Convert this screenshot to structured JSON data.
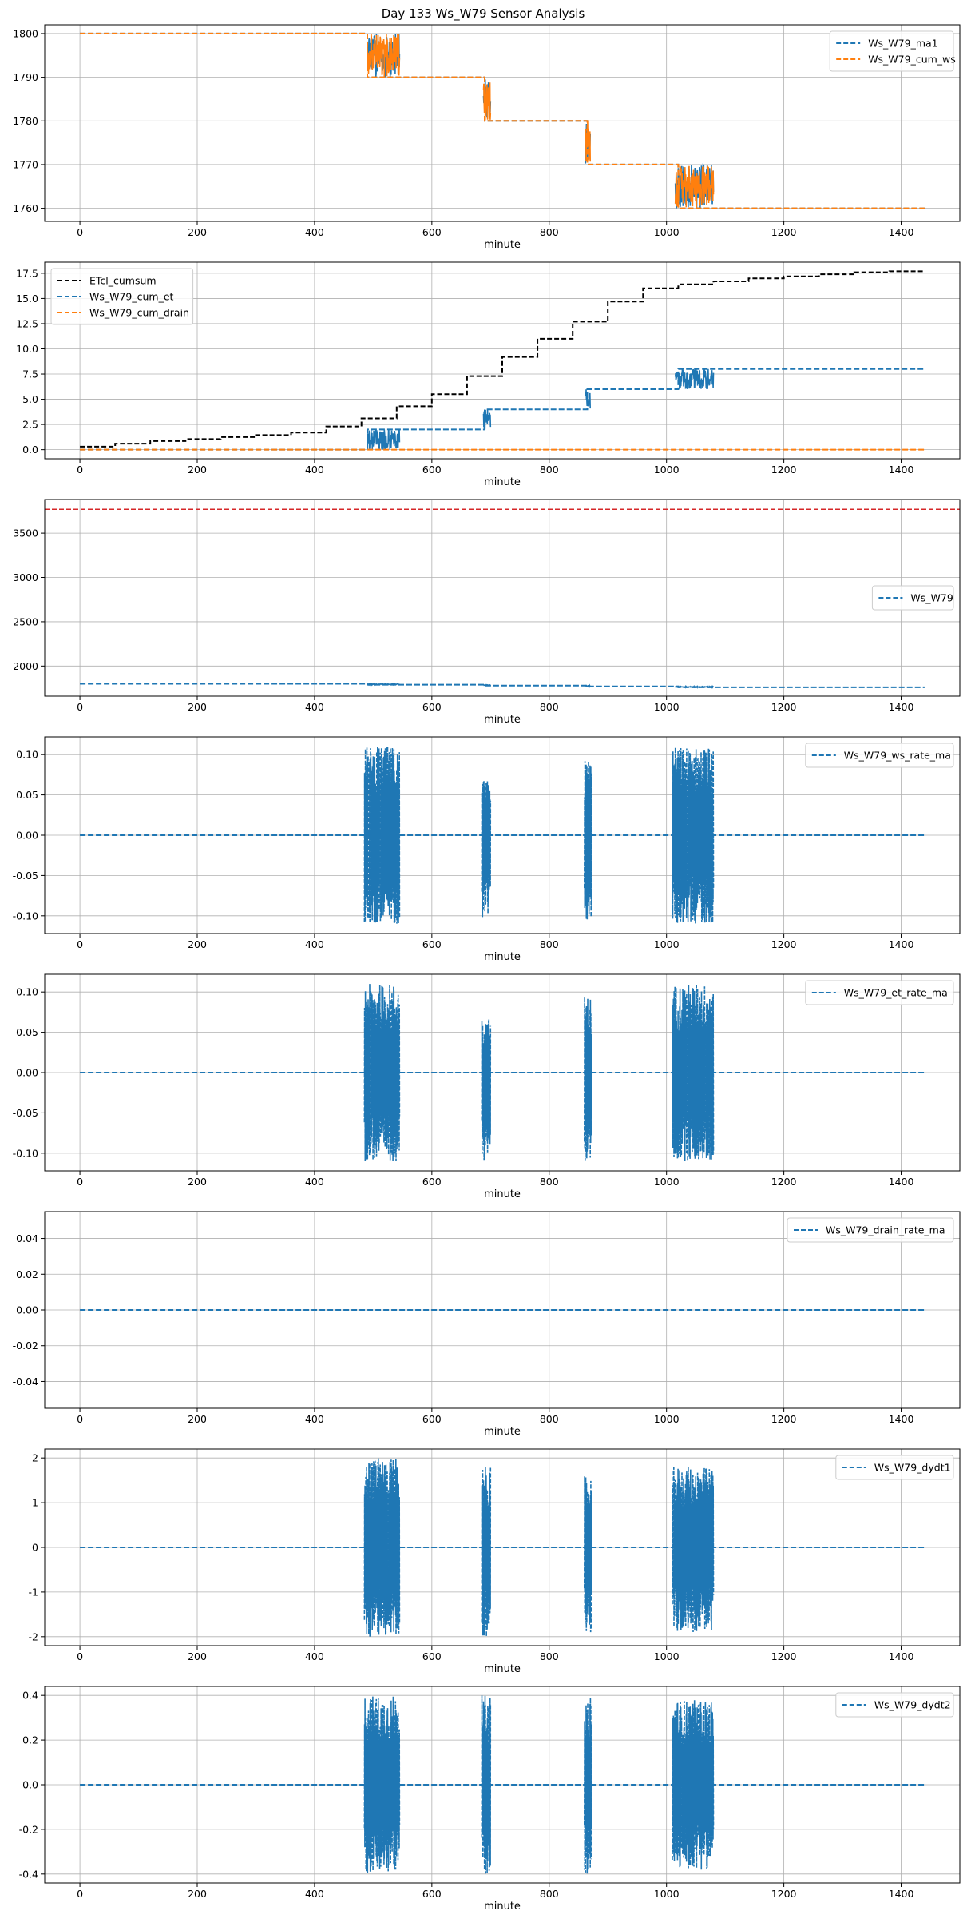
{
  "figure": {
    "suptitle": "Day 133 Ws_W79 Sensor Analysis"
  },
  "colors": {
    "blue": "#1f77b4",
    "orange": "#ff7f0e",
    "black": "#000000",
    "red": "#d62728",
    "grid": "#b0b0b0"
  },
  "chart_data": [
    {
      "type": "line",
      "xlabel": "minute",
      "xlim": [
        -60,
        1500
      ],
      "ylim": [
        1757,
        1802
      ],
      "xticks": [
        0,
        200,
        400,
        600,
        800,
        1000,
        1200,
        1400
      ],
      "xtick_labels": [
        "0",
        "200",
        "400",
        "600",
        "800",
        "1000",
        "1200",
        "1400"
      ],
      "yticks": [
        1760,
        1770,
        1780,
        1790,
        1800
      ],
      "ytick_labels": [
        "1760",
        "1770",
        "1780",
        "1790",
        "1800"
      ],
      "grid": true,
      "legend": "upper-right",
      "series": [
        {
          "name": "Ws_W79_ma1",
          "color": "#1f77b4",
          "style": "dashed",
          "x": [
            0,
            490,
            490,
            690,
            690,
            865,
            865,
            1020,
            1020,
            1440
          ],
          "y": [
            1800,
            1800,
            1790,
            1790,
            1780,
            1780,
            1770,
            1770,
            1760,
            1760
          ],
          "noise": [
            [
              490,
              545,
              1790,
              1800
            ],
            [
              688,
              700,
              1780,
              1790
            ],
            [
              862,
              870,
              1770,
              1780
            ],
            [
              1015,
              1080,
              1760,
              1770
            ]
          ]
        },
        {
          "name": "Ws_W79_cum_ws",
          "color": "#ff7f0e",
          "style": "dashed",
          "x": [
            0,
            490,
            490,
            690,
            690,
            865,
            865,
            1020,
            1020,
            1440
          ],
          "y": [
            1800,
            1800,
            1790,
            1790,
            1780,
            1780,
            1770,
            1770,
            1760,
            1760
          ],
          "noise": [
            [
              490,
              545,
              1790,
              1800
            ],
            [
              688,
              700,
              1780,
              1790
            ],
            [
              862,
              870,
              1770,
              1780
            ],
            [
              1015,
              1080,
              1760,
              1770
            ]
          ]
        }
      ]
    },
    {
      "type": "line",
      "xlabel": "minute",
      "xlim": [
        -60,
        1500
      ],
      "ylim": [
        -0.9,
        18.6
      ],
      "xticks": [
        0,
        200,
        400,
        600,
        800,
        1000,
        1200,
        1400
      ],
      "xtick_labels": [
        "0",
        "200",
        "400",
        "600",
        "800",
        "1000",
        "1200",
        "1400"
      ],
      "yticks": [
        0,
        2.5,
        5,
        7.5,
        10,
        12.5,
        15,
        17.5
      ],
      "ytick_labels": [
        "0.0",
        "2.5",
        "5.0",
        "7.5",
        "10.0",
        "12.5",
        "15.0",
        "17.5"
      ],
      "grid": true,
      "legend": "upper-left",
      "series": [
        {
          "name": "ETcl_cumsum",
          "color": "#000000",
          "style": "dashed",
          "x": [
            0,
            60,
            60,
            120,
            120,
            180,
            180,
            240,
            240,
            300,
            300,
            360,
            360,
            420,
            420,
            480,
            480,
            540,
            540,
            600,
            600,
            660,
            660,
            720,
            720,
            780,
            780,
            840,
            840,
            900,
            900,
            960,
            960,
            1020,
            1020,
            1080,
            1080,
            1140,
            1140,
            1200,
            1200,
            1260,
            1260,
            1320,
            1320,
            1380,
            1380,
            1440
          ],
          "y": [
            0.3,
            0.3,
            0.6,
            0.6,
            0.85,
            0.85,
            1.05,
            1.05,
            1.25,
            1.25,
            1.45,
            1.45,
            1.7,
            1.7,
            2.3,
            2.3,
            3.1,
            3.1,
            4.3,
            4.3,
            5.5,
            5.5,
            7.3,
            7.3,
            9.2,
            9.2,
            11.0,
            11.0,
            12.7,
            12.7,
            14.7,
            14.7,
            16.0,
            16.0,
            16.4,
            16.4,
            16.7,
            16.7,
            17.0,
            17.0,
            17.2,
            17.2,
            17.4,
            17.4,
            17.6,
            17.6,
            17.7,
            17.7
          ]
        },
        {
          "name": "Ws_W79_cum_et",
          "color": "#1f77b4",
          "style": "dashed",
          "x": [
            0,
            490,
            490,
            690,
            690,
            865,
            865,
            1020,
            1020,
            1440
          ],
          "y": [
            0,
            0,
            2,
            2,
            4,
            4,
            6,
            6,
            8,
            8
          ],
          "noise": [
            [
              490,
              545,
              0,
              2
            ],
            [
              688,
              700,
              2,
              4
            ],
            [
              862,
              870,
              4,
              6
            ],
            [
              1015,
              1080,
              6,
              8
            ]
          ]
        },
        {
          "name": "Ws_W79_cum_drain",
          "color": "#ff7f0e",
          "style": "dashed",
          "x": [
            0,
            1440
          ],
          "y": [
            0,
            0
          ]
        }
      ]
    },
    {
      "type": "line",
      "xlabel": "minute",
      "xlim": [
        -60,
        1500
      ],
      "ylim": [
        1660,
        3880
      ],
      "xticks": [
        0,
        200,
        400,
        600,
        800,
        1000,
        1200,
        1400
      ],
      "xtick_labels": [
        "0",
        "200",
        "400",
        "600",
        "800",
        "1000",
        "1200",
        "1400"
      ],
      "yticks": [
        2000,
        2500,
        3000,
        3500
      ],
      "ytick_labels": [
        "2000",
        "2500",
        "3000",
        "3500"
      ],
      "grid": true,
      "legend": "center-right",
      "hline": {
        "y": 3770,
        "color": "#d62728",
        "style": "dashed"
      },
      "series": [
        {
          "name": "Ws_W79",
          "color": "#1f77b4",
          "style": "dashed",
          "x": [
            0,
            490,
            490,
            690,
            690,
            865,
            865,
            1020,
            1020,
            1440
          ],
          "y": [
            1800,
            1800,
            1790,
            1790,
            1780,
            1780,
            1770,
            1770,
            1760,
            1760
          ],
          "noise": [
            [
              490,
              545,
              1790,
              1800
            ],
            [
              688,
              700,
              1780,
              1790
            ],
            [
              862,
              870,
              1770,
              1780
            ],
            [
              1015,
              1080,
              1760,
              1770
            ]
          ]
        }
      ]
    },
    {
      "type": "line",
      "xlabel": "minute",
      "xlim": [
        -60,
        1500
      ],
      "ylim": [
        -0.122,
        0.122
      ],
      "xticks": [
        0,
        200,
        400,
        600,
        800,
        1000,
        1200,
        1400
      ],
      "xtick_labels": [
        "0",
        "200",
        "400",
        "600",
        "800",
        "1000",
        "1200",
        "1400"
      ],
      "yticks": [
        -0.1,
        -0.05,
        0,
        0.05,
        0.1
      ],
      "ytick_labels": [
        "-0.10",
        "-0.05",
        "0.00",
        "0.05",
        "0.10"
      ],
      "grid": true,
      "legend": "upper-right",
      "series": [
        {
          "name": "Ws_W79_ws_rate_ma",
          "color": "#1f77b4",
          "style": "dashed",
          "x": [
            0,
            1440
          ],
          "y": [
            0,
            0
          ],
          "bursts": [
            [
              485,
              545,
              -0.11,
              0.11
            ],
            [
              685,
              700,
              -0.11,
              0.068
            ],
            [
              860,
              872,
              -0.11,
              0.095
            ],
            [
              1010,
              1080,
              -0.11,
              0.11
            ]
          ]
        }
      ]
    },
    {
      "type": "line",
      "xlabel": "minute",
      "xlim": [
        -60,
        1500
      ],
      "ylim": [
        -0.122,
        0.122
      ],
      "xticks": [
        0,
        200,
        400,
        600,
        800,
        1000,
        1200,
        1400
      ],
      "xtick_labels": [
        "0",
        "200",
        "400",
        "600",
        "800",
        "1000",
        "1200",
        "1400"
      ],
      "yticks": [
        -0.1,
        -0.05,
        0,
        0.05,
        0.1
      ],
      "ytick_labels": [
        "-0.10",
        "-0.05",
        "0.00",
        "0.05",
        "0.10"
      ],
      "grid": true,
      "legend": "upper-right",
      "series": [
        {
          "name": "Ws_W79_et_rate_ma",
          "color": "#1f77b4",
          "style": "dashed",
          "x": [
            0,
            1440
          ],
          "y": [
            0,
            0
          ],
          "bursts": [
            [
              485,
              545,
              -0.11,
              0.11
            ],
            [
              685,
              700,
              -0.11,
              0.068
            ],
            [
              860,
              872,
              -0.11,
              0.095
            ],
            [
              1010,
              1080,
              -0.11,
              0.11
            ]
          ]
        }
      ]
    },
    {
      "type": "line",
      "xlabel": "minute",
      "xlim": [
        -60,
        1500
      ],
      "ylim": [
        -0.055,
        0.055
      ],
      "xticks": [
        0,
        200,
        400,
        600,
        800,
        1000,
        1200,
        1400
      ],
      "xtick_labels": [
        "0",
        "200",
        "400",
        "600",
        "800",
        "1000",
        "1200",
        "1400"
      ],
      "yticks": [
        -0.04,
        -0.02,
        0,
        0.02,
        0.04
      ],
      "ytick_labels": [
        "-0.04",
        "-0.02",
        "0.00",
        "0.02",
        "0.04"
      ],
      "grid": true,
      "legend": "upper-right",
      "series": [
        {
          "name": "Ws_W79_drain_rate_ma",
          "color": "#1f77b4",
          "style": "dashed",
          "x": [
            0,
            1440
          ],
          "y": [
            0,
            0
          ]
        }
      ]
    },
    {
      "type": "line",
      "xlabel": "minute",
      "xlim": [
        -60,
        1500
      ],
      "ylim": [
        -2.2,
        2.2
      ],
      "xticks": [
        0,
        200,
        400,
        600,
        800,
        1000,
        1200,
        1400
      ],
      "xtick_labels": [
        "0",
        "200",
        "400",
        "600",
        "800",
        "1000",
        "1200",
        "1400"
      ],
      "yticks": [
        -2,
        -1,
        0,
        1,
        2
      ],
      "ytick_labels": [
        "-2",
        "-1",
        "0",
        "1",
        "2"
      ],
      "grid": true,
      "legend": "upper-right",
      "series": [
        {
          "name": "Ws_W79_dydt1",
          "color": "#1f77b4",
          "style": "dashed",
          "x": [
            0,
            1440
          ],
          "y": [
            0,
            0
          ],
          "bursts": [
            [
              485,
              545,
              -2,
              2
            ],
            [
              685,
              700,
              -2,
              1.8
            ],
            [
              860,
              872,
              -1.9,
              1.6
            ],
            [
              1010,
              1080,
              -1.9,
              1.8
            ]
          ]
        }
      ]
    },
    {
      "type": "line",
      "xlabel": "minute",
      "xlim": [
        -60,
        1500
      ],
      "ylim": [
        -0.44,
        0.44
      ],
      "xticks": [
        0,
        200,
        400,
        600,
        800,
        1000,
        1200,
        1400
      ],
      "xtick_labels": [
        "0",
        "200",
        "400",
        "600",
        "800",
        "1000",
        "1200",
        "1400"
      ],
      "yticks": [
        -0.4,
        -0.2,
        0,
        0.2,
        0.4
      ],
      "ytick_labels": [
        "-0.4",
        "-0.2",
        "0.0",
        "0.2",
        "0.4"
      ],
      "grid": true,
      "legend": "upper-right",
      "series": [
        {
          "name": "Ws_W79_dydt2",
          "color": "#1f77b4",
          "style": "dashed",
          "x": [
            0,
            1440
          ],
          "y": [
            0,
            0
          ],
          "bursts": [
            [
              485,
              545,
              -0.4,
              0.4
            ],
            [
              685,
              700,
              -0.4,
              0.4
            ],
            [
              860,
              872,
              -0.4,
              0.4
            ],
            [
              1010,
              1080,
              -0.38,
              0.38
            ]
          ]
        }
      ]
    }
  ]
}
